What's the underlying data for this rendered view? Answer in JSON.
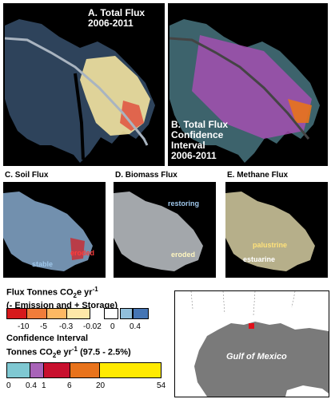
{
  "panels": {
    "a": {
      "title": "A. Total Flux\n2006-2011"
    },
    "b": {
      "title": "B. Total  Flux\nConfidence\nInterval\n2006-2011"
    },
    "c": {
      "title": "C. Soil Flux",
      "labels": [
        "stable",
        "eroded"
      ]
    },
    "d": {
      "title": "D. Biomass Flux",
      "labels": [
        "restoring",
        "eroded"
      ]
    },
    "e": {
      "title": "E. Methane Flux",
      "labels": [
        "palustrine",
        "estuarine"
      ]
    }
  },
  "flux_legend": {
    "title_line1": "Flux Tonnes CO",
    "title_sub1": "2",
    "title_mid": "e yr",
    "title_sup": "-1",
    "title_line2": "(- Emission and + Storage)",
    "colors": [
      "#d7191c",
      "#f07c3a",
      "#fdb863",
      "#fee8a8",
      "#ffffff",
      "#91bfdb",
      "#4575b4"
    ],
    "ticks": [
      "-10",
      "-5",
      "-0.3",
      "-0.02",
      "0",
      "0.4"
    ]
  },
  "ci_legend": {
    "title_line1": "Confidence Interval",
    "title_line2a": "Tonnes CO",
    "title_sub": "2",
    "title_line2b": "e yr",
    "title_sup": "-1",
    "title_line2c": " (97.5 - 2.5%)",
    "colors": [
      "#7fc8d2",
      "#a863b8",
      "#c8102e",
      "#e8731c",
      "#ffea00"
    ],
    "ticks": [
      "0",
      "0.4",
      "1",
      "6",
      "20",
      "54"
    ]
  },
  "inset_map": {
    "water_label": "Gulf of Mexico",
    "marker_color": "#e0101a"
  }
}
